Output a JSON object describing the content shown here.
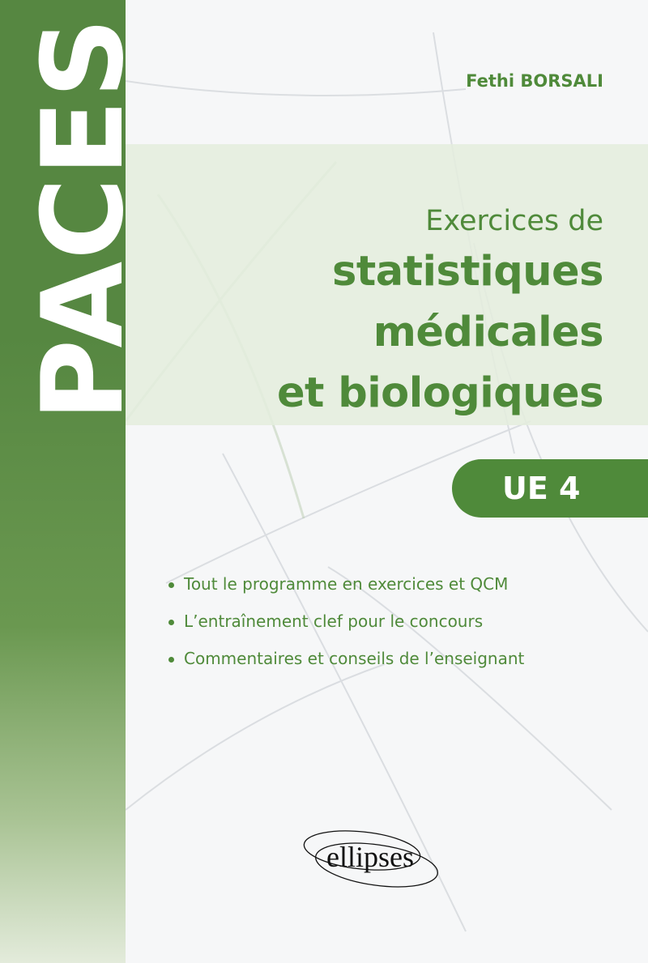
{
  "series": "PACES",
  "author": "Fethi BORSALI",
  "title": {
    "line1": "Exercices de",
    "line2": "statistiques",
    "line3": "médicales",
    "line4": "et biologiques"
  },
  "badge": "UE 4",
  "bullets": [
    "Tout le programme en exercices et QCM",
    "L’entraînement clef pour le concours",
    "Commentaires et conseils de l’enseignant"
  ],
  "publisher": "ellipses",
  "colors": {
    "accent": "#4f8a3a",
    "sidebar": "#568741",
    "band": "#e4eddd"
  }
}
